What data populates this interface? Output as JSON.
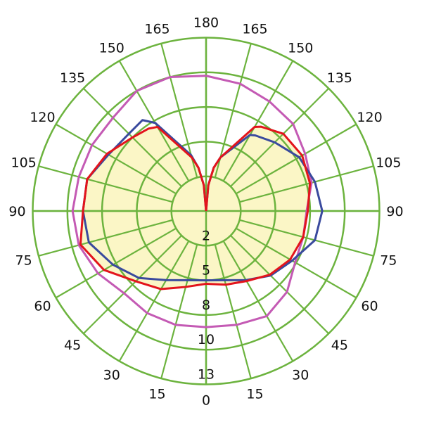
{
  "chart_data": {
    "type": "polar-line",
    "title": "",
    "angle_unit": "degrees",
    "angle_convention": "0 at bottom, 180 at top; negative = left half, positive = right half",
    "angle_tick_labels": [
      "0",
      "15",
      "30",
      "45",
      "60",
      "75",
      "90",
      "105",
      "120",
      "135",
      "150",
      "165",
      "180"
    ],
    "radial_ticks": [
      2,
      5,
      8,
      10,
      13
    ],
    "radial_tick_labels": [
      "2",
      "5",
      "8",
      "10",
      "13"
    ],
    "grid": true,
    "colors": {
      "grid": "#6cb33e",
      "fill": "#fbf6c6"
    },
    "series": [
      {
        "name": "magenta",
        "color": "#c45ab4",
        "angles": [
          -180,
          -165,
          -150,
          -135,
          -120,
          -105,
          -90,
          -75,
          -60,
          -45,
          -30,
          -15,
          0,
          15,
          30,
          45,
          60,
          75,
          90,
          105,
          120,
          135,
          150,
          165,
          180
        ],
        "values": [
          9.8,
          10.0,
          10.0,
          9.6,
          9.6,
          9.6,
          9.7,
          9.6,
          9.2,
          8.7,
          8.8,
          8.8,
          8.7,
          8.8,
          9.0,
          8.6,
          7.9,
          7.7,
          7.7,
          8.3,
          8.6,
          9.1,
          9.3,
          9.6,
          9.8
        ]
      },
      {
        "name": "blue",
        "color": "#3a4a9e",
        "angles": [
          -180,
          -175,
          -170,
          -165,
          -150,
          -145,
          -135,
          -120,
          -105,
          -90,
          -75,
          -60,
          -45,
          -30,
          -15,
          0,
          15,
          30,
          45,
          60,
          75,
          90,
          105,
          120,
          135,
          147,
          150,
          165,
          170,
          175,
          180
        ],
        "values": [
          0,
          1.5,
          2.8,
          4.0,
          7.8,
          8.4,
          8.3,
          8.5,
          9.1,
          9.1,
          9.0,
          8.2,
          7.2,
          5.9,
          5.2,
          5.0,
          5.2,
          5.9,
          6.9,
          7.6,
          8.5,
          8.7,
          8.5,
          8.2,
          7.4,
          6.8,
          6.6,
          3.8,
          2.8,
          1.5,
          0
        ]
      },
      {
        "name": "red",
        "color": "#e3141c",
        "angles": [
          -180,
          -175,
          -170,
          -165,
          -150,
          -145,
          -135,
          -120,
          -105,
          -90,
          -75,
          -60,
          -45,
          -30,
          -15,
          0,
          15,
          30,
          45,
          60,
          75,
          90,
          105,
          120,
          135,
          147,
          150,
          165,
          170,
          175,
          180
        ],
        "values": [
          0,
          1.5,
          2.8,
          3.8,
          7.4,
          7.7,
          8.0,
          8.6,
          9.1,
          9.1,
          9.5,
          8.8,
          7.6,
          6.8,
          5.8,
          5.3,
          5.6,
          6.0,
          6.8,
          7.4,
          7.7,
          7.8,
          8.2,
          8.4,
          8.3,
          7.7,
          7.4,
          3.8,
          2.8,
          1.5,
          0
        ]
      }
    ]
  }
}
